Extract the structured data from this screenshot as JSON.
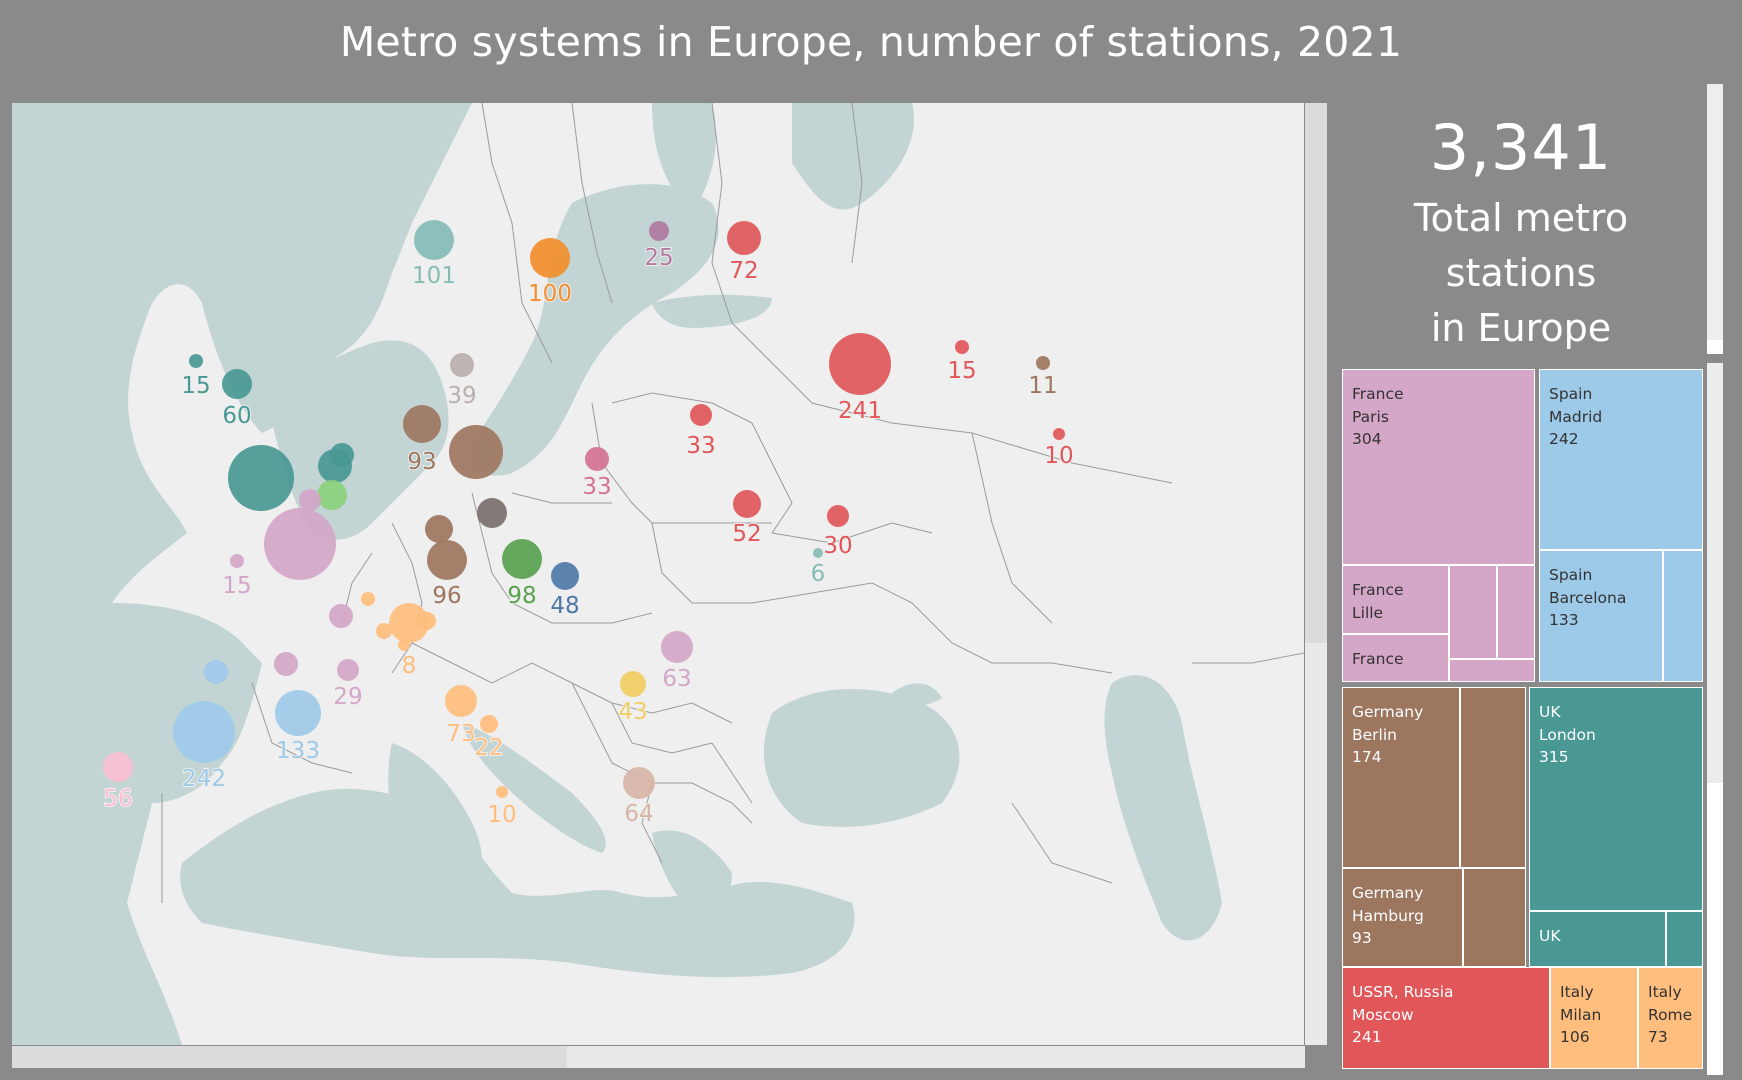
{
  "title": "Metro systems in Europe, number of stations, 2021",
  "kpi": {
    "total": "3,341",
    "label_lines": [
      "Total metro",
      "stations",
      "in Europe"
    ]
  },
  "colors": {
    "page_background": "#8a8a8a",
    "land": "#efefef",
    "water": "#c2d4d3",
    "border": "#9b9b9b",
    "France": "#d4a6c8",
    "Spain": "#9ecae9",
    "UK": "#499894",
    "Germany": "#9d7660",
    "USSR, Russia": "#e15759",
    "Italy": "#ffbe7d"
  },
  "bubbles": [
    {
      "value": "101",
      "color": "#86bcb6",
      "label_color": "#86bcb6"
    },
    {
      "value": "100",
      "color": "#f28e2b",
      "label_color": "#f28e2b"
    },
    {
      "value": "25",
      "color": "#b07aa1",
      "label_color": "#b07aa1"
    },
    {
      "value": "72",
      "color": "#e15759",
      "label_color": "#e15759"
    },
    {
      "value": "15",
      "color": "#499894",
      "label_color": "#499894"
    },
    {
      "value": "60",
      "color": "#499894",
      "label_color": "#499894"
    },
    {
      "value": "39",
      "color": "#bab0ac",
      "label_color": "#bab0ac"
    },
    {
      "value": "93",
      "color": "#9d7660",
      "label_color": "#9d7660"
    },
    {
      "value": "",
      "color": "#9d7660",
      "label_color": "#9d7660"
    },
    {
      "value": "33",
      "color": "#d37295",
      "label_color": "#d37295"
    },
    {
      "value": "33",
      "color": "#e15759",
      "label_color": "#e15759"
    },
    {
      "value": "241",
      "color": "#e15759",
      "label_color": "#e15759"
    },
    {
      "value": "15",
      "color": "#e15759",
      "label_color": "#e15759"
    },
    {
      "value": "11",
      "color": "#9d7660",
      "label_color": "#9d7660"
    },
    {
      "value": "10",
      "color": "#e15759",
      "label_color": "#e15759"
    },
    {
      "value": "",
      "color": "#499894",
      "label_color": "#499894"
    },
    {
      "value": "",
      "color": "#499894",
      "label_color": "#499894"
    },
    {
      "value": "",
      "color": "#499894",
      "label_color": "#499894"
    },
    {
      "value": "",
      "color": "#8cd17d",
      "label_color": "#8cd17d"
    },
    {
      "value": "",
      "color": "#d4a6c8",
      "label_color": "#d4a6c8"
    },
    {
      "value": "",
      "color": "#d4a6c8",
      "label_color": "#d4a6c8"
    },
    {
      "value": "15",
      "color": "#d4a6c8",
      "label_color": "#d4a6c8"
    },
    {
      "value": "",
      "color": "#9d7660",
      "label_color": "#9d7660"
    },
    {
      "value": "96",
      "color": "#9d7660",
      "label_color": "#9d7660"
    },
    {
      "value": "",
      "color": "#79706e",
      "label_color": "#79706e"
    },
    {
      "value": "98",
      "color": "#59a14f",
      "label_color": "#59a14f"
    },
    {
      "value": "48",
      "color": "#4e79a7",
      "label_color": "#4e79a7"
    },
    {
      "value": "52",
      "color": "#e15759",
      "label_color": "#e15759"
    },
    {
      "value": "30",
      "color": "#e15759",
      "label_color": "#e15759"
    },
    {
      "value": "6",
      "color": "#86bcb6",
      "label_color": "#86bcb6"
    },
    {
      "value": "",
      "color": "#ffbe7d",
      "label_color": "#ffbe7d"
    },
    {
      "value": "8",
      "color": "#ffbe7d",
      "label_color": "#ffbe7d"
    },
    {
      "value": "",
      "color": "#ffbe7d",
      "label_color": "#ffbe7d"
    },
    {
      "value": "",
      "color": "#ffbe7d",
      "label_color": "#ffbe7d"
    },
    {
      "value": "",
      "color": "#ffbe7d",
      "label_color": "#ffbe7d"
    },
    {
      "value": "",
      "color": "#d4a6c8",
      "label_color": "#d4a6c8"
    },
    {
      "value": "",
      "color": "#d4a6c8",
      "label_color": "#d4a6c8"
    },
    {
      "value": "29",
      "color": "#d4a6c8",
      "label_color": "#d4a6c8"
    },
    {
      "value": "",
      "color": "#9ecae9",
      "label_color": "#9ecae9"
    },
    {
      "value": "242",
      "color": "#9ecae9",
      "label_color": "#9ecae9"
    },
    {
      "value": "133",
      "color": "#9ecae9",
      "label_color": "#9ecae9"
    },
    {
      "value": "56",
      "color": "#fabfd2",
      "label_color": "#fabfd2"
    },
    {
      "value": "73",
      "color": "#ffbe7d",
      "label_color": "#ffbe7d"
    },
    {
      "value": "22",
      "color": "#ffbe7d",
      "label_color": "#ffbe7d"
    },
    {
      "value": "10",
      "color": "#ffbe7d",
      "label_color": "#ffbe7d"
    },
    {
      "value": "63",
      "color": "#d4a6c8",
      "label_color": "#d4a6c8"
    },
    {
      "value": "43",
      "color": "#f1ce63",
      "label_color": "#f1ce63"
    },
    {
      "value": "64",
      "color": "#d7b5a6",
      "label_color": "#d7b5a6"
    }
  ],
  "treemap": [
    {
      "lines": [
        "France",
        "Paris",
        "304"
      ],
      "color": "#d4a6c8",
      "text_color": "#333333"
    },
    {
      "lines": [
        "France",
        "Lille"
      ],
      "color": "#d4a6c8",
      "text_color": "#333333"
    },
    {
      "lines": [],
      "color": "#d4a6c8",
      "text_color": "#333333"
    },
    {
      "lines": [],
      "color": "#d4a6c8",
      "text_color": "#333333"
    },
    {
      "lines": [
        "France"
      ],
      "color": "#d4a6c8",
      "text_color": "#333333"
    },
    {
      "lines": [],
      "color": "#d4a6c8",
      "text_color": "#333333"
    },
    {
      "lines": [
        "Spain",
        "Madrid",
        "242"
      ],
      "color": "#9ecae9",
      "text_color": "#333333"
    },
    {
      "lines": [
        "Spain",
        "Barcelona",
        "133"
      ],
      "color": "#9ecae9",
      "text_color": "#333333"
    },
    {
      "lines": [],
      "color": "#9ecae9",
      "text_color": "#333333"
    },
    {
      "lines": [
        "Germany",
        "Berlin",
        "174"
      ],
      "color": "#9d7660",
      "text_color": "#ffffff"
    },
    {
      "lines": [],
      "color": "#9d7660",
      "text_color": "#ffffff"
    },
    {
      "lines": [
        "Germany",
        "Hamburg",
        "93"
      ],
      "color": "#9d7660",
      "text_color": "#ffffff"
    },
    {
      "lines": [],
      "color": "#9d7660",
      "text_color": "#ffffff"
    },
    {
      "lines": [
        "UK",
        "London",
        "315"
      ],
      "color": "#499894",
      "text_color": "#ffffff"
    },
    {
      "lines": [
        "UK"
      ],
      "color": "#499894",
      "text_color": "#ffffff"
    },
    {
      "lines": [],
      "color": "#499894",
      "text_color": "#ffffff"
    },
    {
      "lines": [
        "USSR, Russia",
        "Moscow",
        "241"
      ],
      "color": "#e15759",
      "text_color": "#ffffff"
    },
    {
      "lines": [
        "Italy",
        "Milan",
        "106"
      ],
      "color": "#ffbe7d",
      "text_color": "#333333"
    },
    {
      "lines": [
        "Italy",
        "Rome",
        "73"
      ],
      "color": "#ffbe7d",
      "text_color": "#333333"
    }
  ]
}
